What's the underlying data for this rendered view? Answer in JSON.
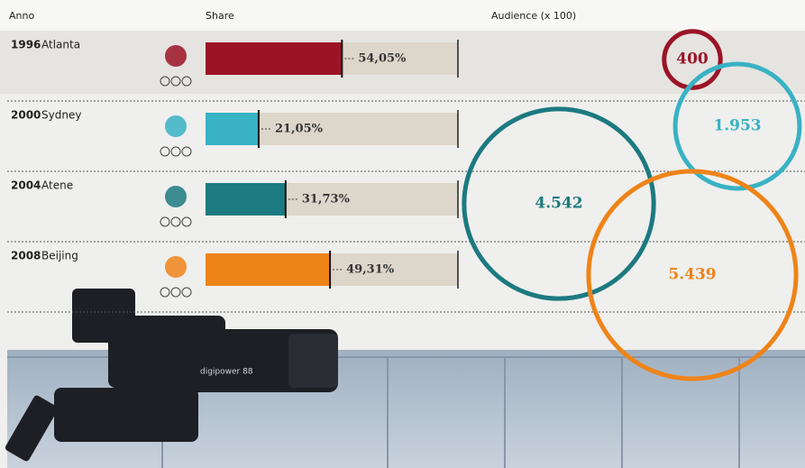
{
  "chart_data": {
    "type": "bar",
    "year_header": "Anno",
    "years": [
      "1996",
      "2000",
      "2004",
      "2008"
    ],
    "categories": [
      "Atlanta",
      "Sydney",
      "Atene",
      "Beijing"
    ],
    "colors": [
      "#9b1426",
      "#38b2c4",
      "#1c7a80",
      "#ee8418"
    ],
    "xlim": [
      0,
      100
    ],
    "series": [
      {
        "name": "Share",
        "values": [
          54.05,
          21.05,
          31.73,
          49.31
        ],
        "value_labels": [
          "54,05%",
          "21,05%",
          "31,73%",
          "49,31%"
        ]
      },
      {
        "name": "Audience (x 100)",
        "values": [
          400,
          1953,
          4542,
          5439
        ],
        "value_labels": [
          "400",
          "1.953",
          "4.542",
          "5.439"
        ]
      }
    ]
  }
}
